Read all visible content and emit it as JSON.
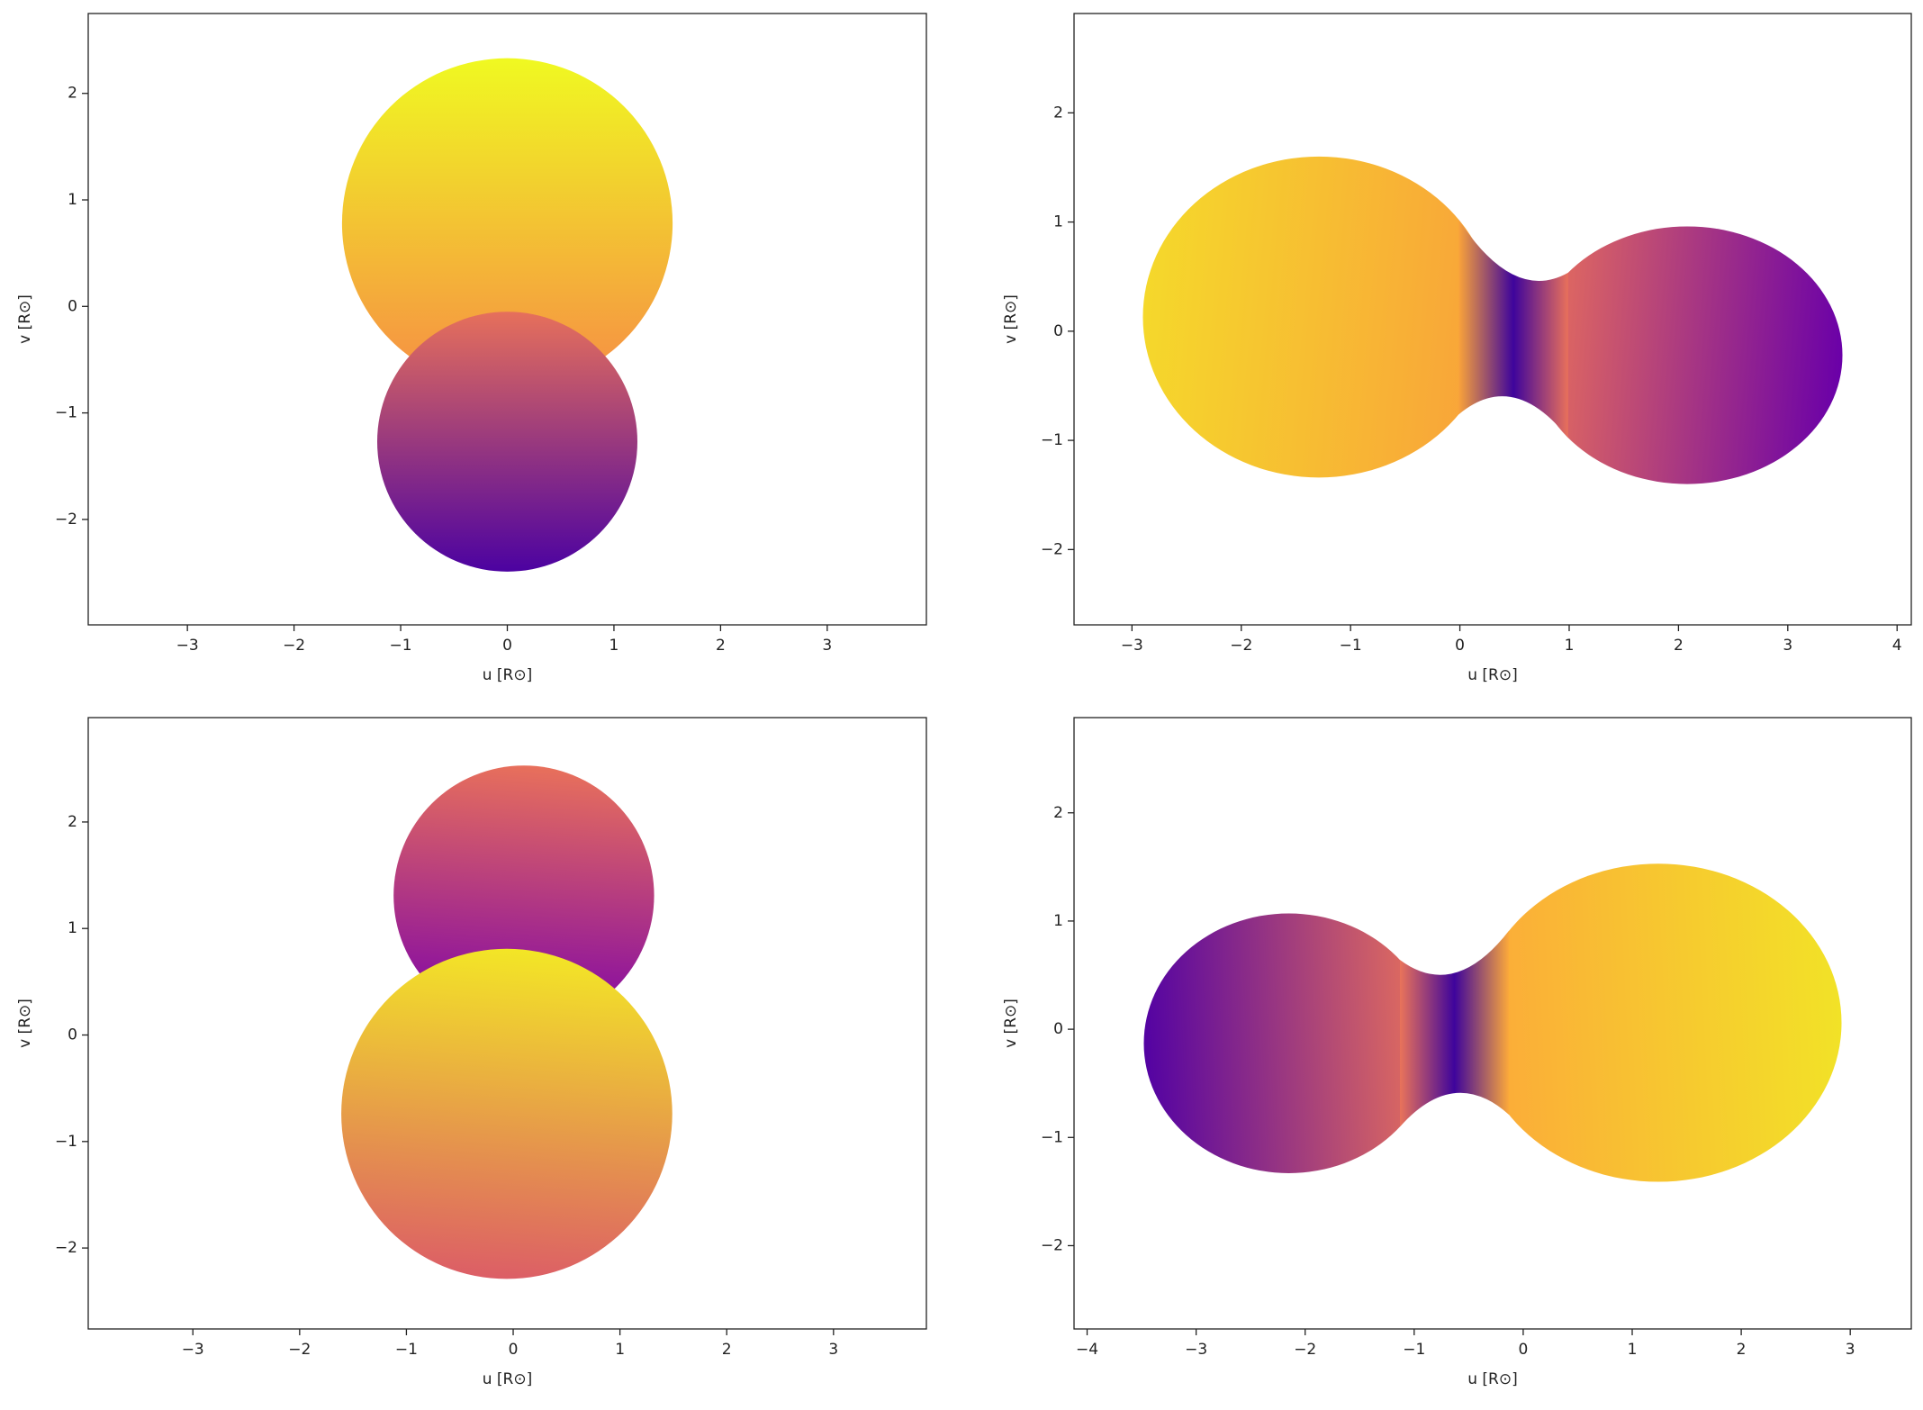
{
  "chart_data": [
    {
      "type": "mesh",
      "xlabel": "u [R⊙]",
      "ylabel": "v [R⊙]",
      "contact": false,
      "neck_color": "#3e049c",
      "xlim": [
        -3.93,
        3.93
      ],
      "ylim": [
        -2.99,
        2.75
      ],
      "xticks": [
        {
          "value": -3,
          "label": "−3"
        },
        {
          "value": -2,
          "label": "−2"
        },
        {
          "value": -1,
          "label": "−1"
        },
        0,
        1,
        2,
        3
      ],
      "yticks": [
        {
          "value": -2,
          "label": "−2"
        },
        {
          "value": -1,
          "label": "−1"
        },
        0,
        1,
        2
      ],
      "bodies": [
        {
          "u": 0,
          "v": 0.78,
          "rx": 1.55,
          "ry": 1.55,
          "colors": [
            "#f68d45",
            "#f0f921"
          ]
        },
        {
          "u": 0,
          "v": -1.27,
          "rx": 1.22,
          "ry": 1.22,
          "colors": [
            "#e6705b",
            "#4c02a1"
          ]
        }
      ]
    },
    {
      "type": "mesh",
      "xlabel": "u [R⊙]",
      "ylabel": "v [R⊙]",
      "contact": true,
      "neck_color": "#3e049c",
      "xlim": [
        -3.53,
        4.13
      ],
      "ylim": [
        -2.69,
        2.91
      ],
      "xticks": [
        {
          "value": -3,
          "label": "−3"
        },
        {
          "value": -2,
          "label": "−2"
        },
        {
          "value": -1,
          "label": "−1"
        },
        0,
        1,
        2,
        3,
        4
      ],
      "yticks": [
        {
          "value": -2,
          "label": "−2"
        },
        {
          "value": -1,
          "label": "−1"
        },
        0,
        1,
        2
      ],
      "bodies": [
        {
          "u": -1.29,
          "v": 0.13,
          "rx": 1.61,
          "ry": 1.47,
          "colors": [
            "#f9a23a",
            "#f5d82b"
          ]
        },
        {
          "u": 2.08,
          "v": -0.22,
          "rx": 1.42,
          "ry": 1.18,
          "colors": [
            "#e8705b",
            "#6a00a8"
          ]
        }
      ]
    },
    {
      "type": "mesh",
      "xlabel": "u [R⊙]",
      "ylabel": "v [R⊙]",
      "contact": false,
      "neck_color": "#3e049c",
      "xlim": [
        -3.98,
        3.87
      ],
      "ylim": [
        -2.76,
        2.98
      ],
      "xticks": [
        {
          "value": -3,
          "label": "−3"
        },
        {
          "value": -2,
          "label": "−2"
        },
        {
          "value": -1,
          "label": "−1"
        },
        0,
        1,
        2,
        3
      ],
      "yticks": [
        {
          "value": -2,
          "label": "−2"
        },
        {
          "value": -1,
          "label": "−1"
        },
        0,
        1,
        2
      ],
      "bodies": [
        {
          "u": 0.1,
          "v": 1.31,
          "rx": 1.22,
          "ry": 1.22,
          "colors": [
            "#7e03a8",
            "#e8705b"
          ]
        },
        {
          "u": -0.06,
          "v": -0.74,
          "rx": 1.55,
          "ry": 1.55,
          "colors": [
            "#f3e626",
            "#dc5e66"
          ]
        }
      ]
    },
    {
      "type": "mesh",
      "xlabel": "u [R⊙]",
      "ylabel": "v [R⊙]",
      "contact": true,
      "neck_color": "#3e049c",
      "xlim": [
        -4.12,
        3.56
      ],
      "ylim": [
        -2.77,
        2.88
      ],
      "xticks": [
        {
          "value": -4,
          "label": "−4"
        },
        {
          "value": -3,
          "label": "−3"
        },
        {
          "value": -2,
          "label": "−2"
        },
        {
          "value": -1,
          "label": "−1"
        },
        0,
        1,
        2,
        3
      ],
      "yticks": [
        {
          "value": -2,
          "label": "−2"
        },
        {
          "value": -1,
          "label": "−1"
        },
        0,
        1,
        2
      ],
      "bodies": [
        {
          "u": -2.15,
          "v": -0.13,
          "rx": 1.33,
          "ry": 1.2,
          "colors": [
            "#e9735a",
            "#5302a3"
          ]
        },
        {
          "u": 1.24,
          "v": 0.06,
          "rx": 1.68,
          "ry": 1.47,
          "colors": [
            "#fca93a",
            "#f2e227"
          ]
        }
      ]
    }
  ]
}
